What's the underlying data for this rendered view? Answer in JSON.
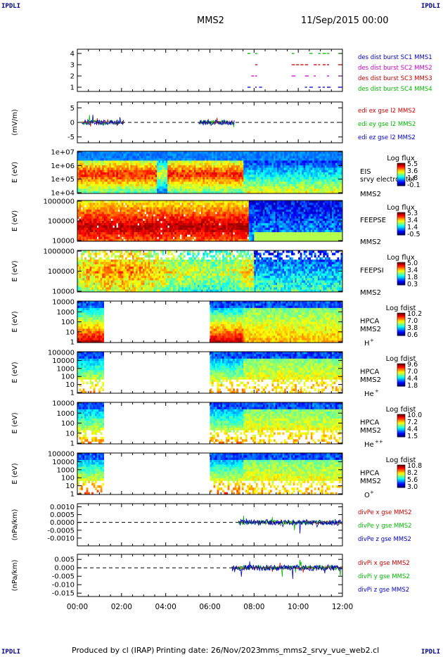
{
  "header": {
    "corner_tl": "IPDLI",
    "corner_tr": "IPDLI",
    "corner_bl": "IPDLI",
    "corner_br": "IPDLI",
    "spacecraft": "MMS2",
    "date_time": "11/Sep/2015 00:00"
  },
  "footer": {
    "produced_by": "Produced by cl (IRAP)",
    "printing_date": "Printing date: 26/Nov/2023",
    "filename": "mms_mms2_srvy_vue_web2.cl"
  },
  "chart_data": {
    "type": "stacked-panels",
    "x_axis": {
      "ticks": [
        "00:00",
        "02:00",
        "04:00",
        "06:00",
        "08:00",
        "10:00",
        "12:00"
      ],
      "range_hours": [
        0,
        12
      ]
    },
    "panels": [
      {
        "id": "burst",
        "type": "timeline",
        "ylabel": "",
        "yticks": [
          "4",
          "3",
          "2",
          "1"
        ],
        "legend": [
          {
            "text": "des dist burst SC1 MMS1",
            "color": "#0000cc"
          },
          {
            "text": "des dist burst SC2 MMS2",
            "color": "#cc00cc"
          },
          {
            "text": "des dist burst SC3 MMS3",
            "color": "#cc0000"
          },
          {
            "text": "des dist burst SC4 MMS4",
            "color": "#00bb00"
          }
        ],
        "segments_hours": [
          [
            7.7,
            8.4
          ],
          [
            9.7,
            11.5
          ],
          [
            11.8,
            12.0
          ]
        ]
      },
      {
        "id": "efield",
        "type": "line",
        "ylabel": "(mV/m)",
        "yticks": [
          "5",
          "0",
          "-5"
        ],
        "ylim": [
          -7,
          7
        ],
        "legend": [
          {
            "text": "edi ex gse l2 MMS2",
            "color": "#cc0000"
          },
          {
            "text": "edi ey gse l2 MMS2",
            "color": "#00bb00"
          },
          {
            "text": "edi ez gse l2 MMS2",
            "color": "#0000cc"
          }
        ],
        "data_intervals_hours": [
          [
            0.2,
            2.1
          ],
          [
            5.5,
            7.1
          ]
        ]
      },
      {
        "id": "eis",
        "type": "heatmap",
        "ylabel": "E (eV)",
        "yticks": [
          "1e+07",
          "1e+06",
          "1e+05",
          "1e+04"
        ],
        "instrument": "EIS",
        "instrument_extra": "srvy electron tof",
        "spacecraft": "MMS2",
        "colorbar": {
          "title": "Log flux",
          "ticks": [
            "5.5",
            "3.6",
            "1.8",
            "-0.1"
          ]
        }
      },
      {
        "id": "feepse",
        "type": "heatmap",
        "ylabel": "E (eV)",
        "yticks": [
          "1000000",
          "100000",
          "10000"
        ],
        "instrument": "FEEPSE",
        "spacecraft": "MMS2",
        "colorbar": {
          "title": "Log flux",
          "ticks": [
            "5.3",
            "3.4",
            "1.4",
            "-0.5"
          ]
        }
      },
      {
        "id": "feepsi",
        "type": "heatmap",
        "ylabel": "E (eV)",
        "yticks": [
          "1000000",
          "100000",
          "10000"
        ],
        "instrument": "FEEPSI",
        "spacecraft": "MMS2",
        "colorbar": {
          "title": "Log flux",
          "ticks": [
            "5.0",
            "3.4",
            "1.8",
            "0.3"
          ]
        }
      },
      {
        "id": "hpca_h",
        "type": "heatmap",
        "ylabel": "E (eV)",
        "yticks": [
          "10000",
          "1000",
          "100",
          "10",
          "1"
        ],
        "instrument": "HPCA",
        "spacecraft": "MMS2",
        "species": "H",
        "species_sup": "+",
        "colorbar": {
          "title": "Log fdist",
          "ticks": [
            "10.2",
            "7.0",
            "3.8",
            "0.6"
          ]
        },
        "data_intervals_hours": [
          [
            0.0,
            1.2
          ],
          [
            6.0,
            12.0
          ]
        ]
      },
      {
        "id": "hpca_he",
        "type": "heatmap",
        "ylabel": "E (eV)",
        "yticks": [
          "100000",
          "10000",
          "1000",
          "100",
          "10",
          "1"
        ],
        "instrument": "HPCA",
        "spacecraft": "MMS2",
        "species": "He",
        "species_sup": "+",
        "colorbar": {
          "title": "Log fdist",
          "ticks": [
            "9.6",
            "7.0",
            "4.4",
            "1.8"
          ]
        },
        "data_intervals_hours": [
          [
            0.0,
            1.2
          ],
          [
            6.0,
            12.0
          ]
        ]
      },
      {
        "id": "hpca_hepp",
        "type": "heatmap",
        "ylabel": "E (eV)",
        "yticks": [
          "10000",
          "1000",
          "100",
          "10",
          "1"
        ],
        "instrument": "HPCA",
        "spacecraft": "MMS2",
        "species": "He",
        "species_sup": "++",
        "colorbar": {
          "title": "Log fdist",
          "ticks": [
            "10.0",
            "7.2",
            "4.4",
            "1.5"
          ]
        },
        "data_intervals_hours": [
          [
            0.0,
            1.2
          ],
          [
            6.0,
            12.0
          ]
        ]
      },
      {
        "id": "hpca_o",
        "type": "heatmap",
        "ylabel": "E (eV)",
        "yticks": [
          "100000",
          "10000",
          "1000",
          "100",
          "10",
          "1"
        ],
        "instrument": "HPCA",
        "spacecraft": "MMS2",
        "species": "O",
        "species_sup": "+",
        "colorbar": {
          "title": "Log fdist",
          "ticks": [
            "10.8",
            "8.2",
            "5.6",
            "3.0"
          ]
        },
        "data_intervals_hours": [
          [
            0.0,
            1.2
          ],
          [
            6.0,
            12.0
          ]
        ]
      },
      {
        "id": "divpe",
        "type": "line",
        "ylabel": "(nPa/km)",
        "yticks": [
          "0.0010",
          "0.0005",
          "0.0000",
          "-0.0005",
          "-0.0010"
        ],
        "ylim": [
          -0.0015,
          0.0012
        ],
        "legend": [
          {
            "text": "divPe x gse MMS2",
            "color": "#cc0000"
          },
          {
            "text": "divPe y gse MMS2",
            "color": "#00bb00"
          },
          {
            "text": "divPe z gse MMS2",
            "color": "#0000cc"
          }
        ],
        "data_intervals_hours": [
          [
            7.3,
            12.0
          ]
        ]
      },
      {
        "id": "divpi",
        "type": "line",
        "ylabel": "(nPa/km)",
        "yticks": [
          "0.005",
          "0.000",
          "-0.005",
          "-0.010",
          "-0.015"
        ],
        "ylim": [
          -0.017,
          0.008
        ],
        "legend": [
          {
            "text": "divPi x gse MMS2",
            "color": "#cc0000"
          },
          {
            "text": "divPi y gse MMS2",
            "color": "#00bb00"
          },
          {
            "text": "divPi z gse MMS2",
            "color": "#0000cc"
          }
        ],
        "data_intervals_hours": [
          [
            7.0,
            12.0
          ]
        ]
      }
    ]
  }
}
